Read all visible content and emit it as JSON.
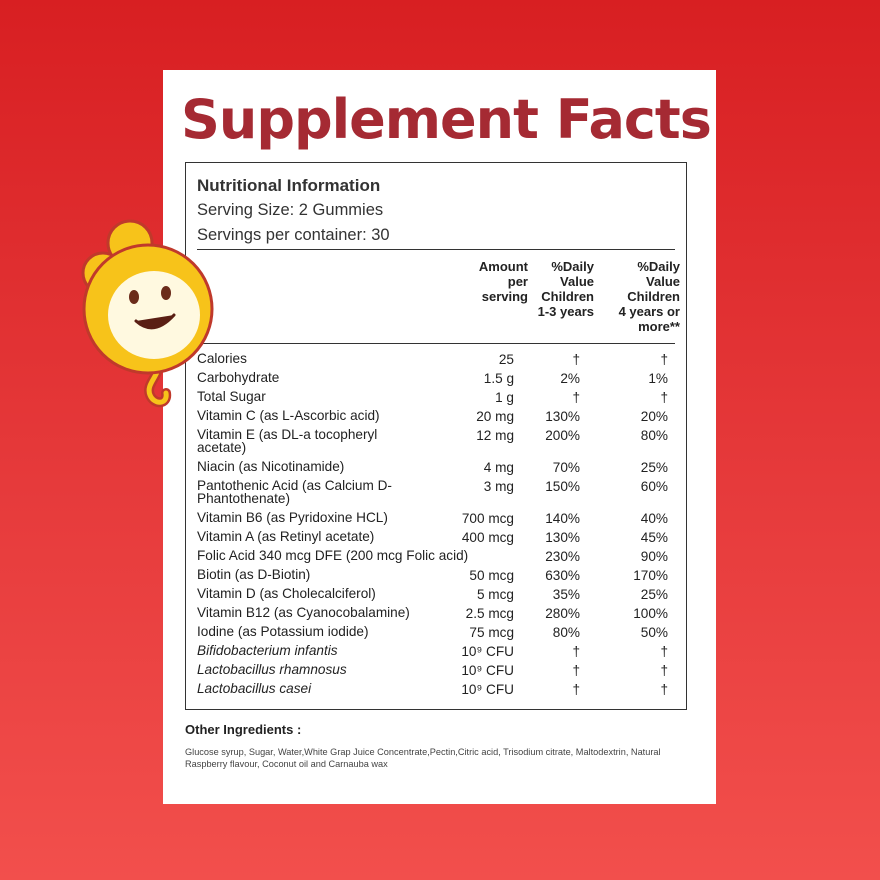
{
  "title": "Supplement Facts",
  "info": {
    "heading": "Nutritional Information",
    "serving_size": "Serving Size: 2 Gummies",
    "servings": "Servings per container: 30"
  },
  "columns": {
    "amount": "Amount\nper\nserving",
    "dv_children_1_3": "%Daily\nValue\nChildren\n1-3 years",
    "dv_children_4": "%Daily\nValue\nChildren\n4 years or\nmore**"
  },
  "rows": [
    {
      "name": "Calories",
      "amount": "25",
      "dv1": "†",
      "dv2": "†"
    },
    {
      "name": "Carbohydrate",
      "amount": "1.5 g",
      "dv1": "2%",
      "dv2": "1%"
    },
    {
      "name": "Total Sugar",
      "amount": "1 g",
      "dv1": "†",
      "dv2": "†"
    },
    {
      "name": "Vitamin C (as L-Ascorbic acid)",
      "amount": "20 mg",
      "dv1": "130%",
      "dv2": "20%"
    },
    {
      "name": "Vitamin E (as DL-a tocopheryl acetate)",
      "amount": "12 mg",
      "dv1": "200%",
      "dv2": "80%"
    },
    {
      "name": "Niacin (as Nicotinamide)",
      "amount": "4 mg",
      "dv1": "70%",
      "dv2": "25%"
    },
    {
      "name": "Pantothenic Acid (as Calcium D-Phantothenate)",
      "amount": "3 mg",
      "dv1": "150%",
      "dv2": "60%"
    },
    {
      "name": "Vitamin B6 (as Pyridoxine HCL)",
      "amount": "700 mcg",
      "dv1": "140%",
      "dv2": "40%"
    },
    {
      "name": "Vitamin A (as Retinyl acetate)",
      "amount": "400 mcg",
      "dv1": "130%",
      "dv2": "45%"
    },
    {
      "name": "Folic Acid        340 mcg DFE (200 mcg Folic acid)",
      "amount": "",
      "dv1": "230%",
      "dv2": "90%"
    },
    {
      "name": "Biotin (as D-Biotin)",
      "amount": "50 mcg",
      "dv1": "630%",
      "dv2": "170%"
    },
    {
      "name": "Vitamin D (as Cholecalciferol)",
      "amount": "5 mcg",
      "dv1": "35%",
      "dv2": "25%"
    },
    {
      "name": "Vitamin B12 (as Cyanocobalamine)",
      "amount": "2.5 mcg",
      "dv1": "280%",
      "dv2": "100%"
    },
    {
      "name": "Iodine (as Potassium iodide)",
      "amount": "75 mcg",
      "dv1": "80%",
      "dv2": "50%"
    },
    {
      "name": "Bifidobacterium infantis",
      "amount": "10⁹ CFU",
      "dv1": "†",
      "dv2": "†"
    },
    {
      "name": "Lactobacillus rhamnosus",
      "amount": "10⁹ CFU",
      "dv1": "†",
      "dv2": "†"
    },
    {
      "name": "Lactobacillus casei",
      "amount": "10⁹ CFU",
      "dv1": "†",
      "dv2": "†"
    }
  ],
  "other": {
    "heading": "Other Ingredients :",
    "text": "Glucose syrup, Sugar, Water,White Grap Juice Concentrate,Pectin,Citric acid, Trisodium citrate, Maltodextrin, Natural Raspberry flavour, Coconut oil and Carnauba wax"
  },
  "colors": {
    "background_top": "#d81f22",
    "background_bottom": "#f24f4c",
    "title": "#a52a33",
    "mascot": "#f7c31a",
    "mascot_outline": "#c0392b"
  },
  "icons": [
    "smiling-gummy-mascot-icon"
  ]
}
